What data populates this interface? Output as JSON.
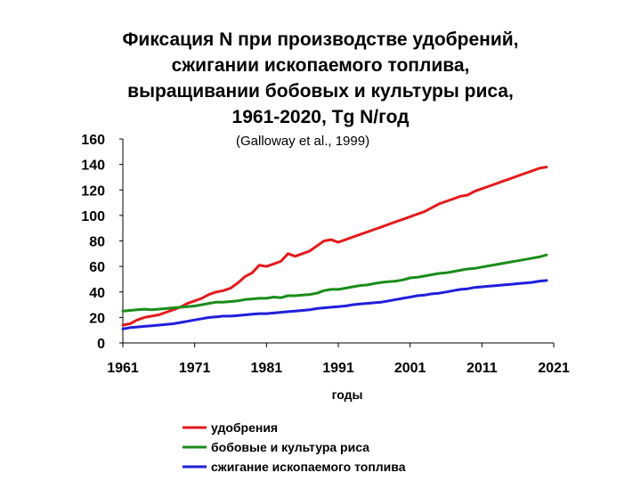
{
  "chart_data": {
    "type": "line",
    "title_lines": [
      "Фиксация N при производстве удобрений,",
      "сжигании ископаемого топлива,",
      "выращивании бобовых и культуры риса,",
      "1961-2020, Tg N/год"
    ],
    "subtitle": "(Galloway et al., 1999)",
    "xlabel": "годы",
    "ylabel": "",
    "xlim": [
      1961,
      2021
    ],
    "ylim": [
      0,
      160
    ],
    "xticks": [
      1961,
      1971,
      1981,
      1991,
      2001,
      2011,
      2021
    ],
    "yticks": [
      0,
      20,
      40,
      60,
      80,
      100,
      120,
      140,
      160
    ],
    "legend_position": "bottom",
    "grid": false,
    "x": [
      1961,
      1962,
      1963,
      1964,
      1965,
      1966,
      1967,
      1968,
      1969,
      1970,
      1971,
      1972,
      1973,
      1974,
      1975,
      1976,
      1977,
      1978,
      1979,
      1980,
      1981,
      1982,
      1983,
      1984,
      1985,
      1986,
      1987,
      1988,
      1989,
      1990,
      1991,
      1992,
      1993,
      1994,
      1995,
      1996,
      1997,
      1998,
      1999,
      2000,
      2001,
      2002,
      2003,
      2004,
      2005,
      2006,
      2007,
      2008,
      2009,
      2010,
      2011,
      2012,
      2013,
      2014,
      2015,
      2016,
      2017,
      2018,
      2019,
      2020
    ],
    "series": [
      {
        "name": "удобрения",
        "color": "#e31a1c",
        "values": [
          14,
          15,
          18,
          20,
          21,
          22,
          24,
          26,
          28,
          31,
          33,
          35,
          38,
          40,
          41,
          43,
          47,
          52,
          55,
          61,
          60,
          62,
          64,
          70,
          68,
          70,
          72,
          76,
          80,
          81,
          79,
          81,
          83,
          85,
          87,
          89,
          91,
          93,
          95,
          97,
          99,
          101,
          103,
          106,
          109,
          111,
          113,
          115,
          116,
          119,
          121,
          123,
          125,
          127,
          129,
          131,
          133,
          135,
          137,
          138
        ]
      },
      {
        "name": "бобовые и культура риса",
        "color": "#1a8c1a",
        "values": [
          25,
          25.5,
          26,
          26.5,
          26,
          26.5,
          27,
          27.5,
          28,
          28.5,
          29,
          30,
          31,
          32,
          32,
          32.5,
          33,
          34,
          34.5,
          35,
          35,
          36,
          35.5,
          37,
          37,
          37.5,
          38,
          39,
          41,
          42,
          42,
          43,
          44,
          45,
          45.5,
          46.5,
          47.5,
          48,
          48.5,
          49.5,
          51,
          51.5,
          52.5,
          53.5,
          54.5,
          55,
          56,
          57,
          58,
          58.5,
          59.5,
          60.5,
          61.5,
          62.5,
          63.5,
          64.5,
          65.5,
          66.5,
          67.5,
          69
        ]
      },
      {
        "name": "сжигание ископаемого топлива",
        "color": "#1f1fdb",
        "values": [
          11,
          12,
          12.5,
          13,
          13.5,
          14,
          14.5,
          15,
          16,
          17,
          18,
          19,
          20,
          20.5,
          21,
          21,
          21.5,
          22,
          22.5,
          23,
          23,
          23.5,
          24,
          24.5,
          25,
          25.5,
          26,
          27,
          27.5,
          28,
          28.5,
          29,
          30,
          30.5,
          31,
          31.5,
          32,
          33,
          34,
          35,
          36,
          37,
          37.5,
          38.5,
          39,
          40,
          41,
          42,
          42.5,
          43.5,
          44,
          44.5,
          45,
          45.5,
          46,
          46.5,
          47,
          47.5,
          48.5,
          49
        ]
      }
    ]
  }
}
